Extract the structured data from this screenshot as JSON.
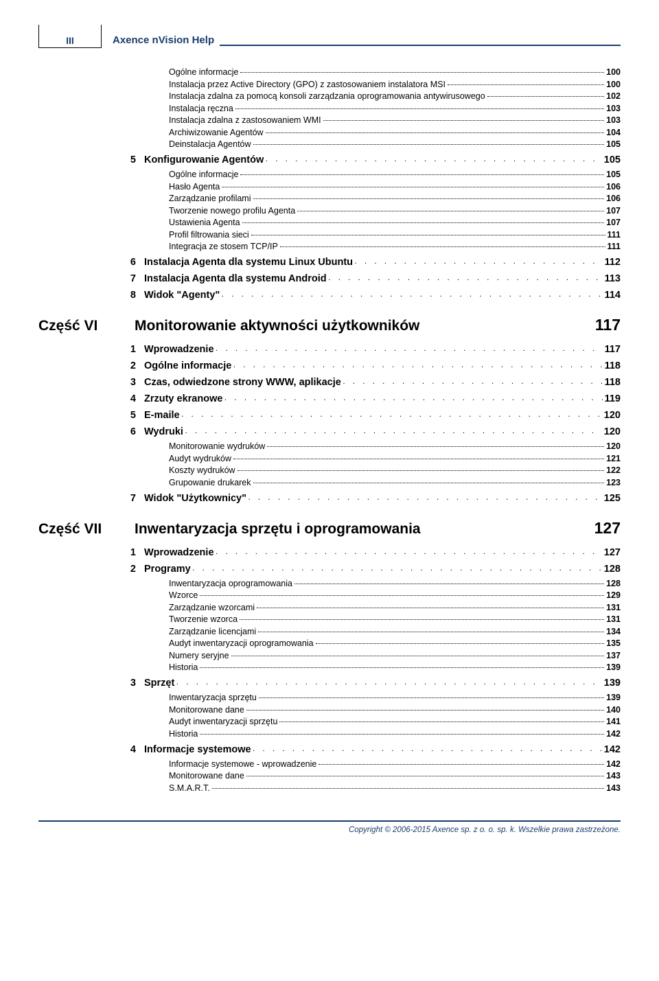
{
  "header": {
    "roman": "III",
    "title": "Axence nVision Help"
  },
  "colors": {
    "brand": "#1a3c6e",
    "text": "#000000",
    "bg": "#ffffff"
  },
  "footer": "Copyright © 2006-2015 Axence sp. z o. o. sp. k. Wszelkie prawa zastrzeżone.",
  "toc": [
    {
      "lvl": 3,
      "label": "Ogólne informacje",
      "page": "100"
    },
    {
      "lvl": 3,
      "label": "Instalacja przez Active Directory (GPO) z zastosowaniem instalatora MSI",
      "page": "100"
    },
    {
      "lvl": 3,
      "label": "Instalacja zdalna za pomocą konsoli zarządzania oprogramowania antywirusowego",
      "page": "102"
    },
    {
      "lvl": 3,
      "label": "Instalacja ręczna",
      "page": "103"
    },
    {
      "lvl": 3,
      "label": "Instalacja zdalna z zastosowaniem WMI",
      "page": "103"
    },
    {
      "lvl": 3,
      "label": "Archiwizowanie Agentów",
      "page": "104"
    },
    {
      "lvl": 3,
      "label": "Deinstalacja Agentów",
      "page": "105"
    },
    {
      "lvl": 2,
      "num": "5",
      "label": "Konfigurowanie Agentów",
      "page": "105"
    },
    {
      "lvl": 3,
      "label": "Ogólne informacje",
      "page": "105"
    },
    {
      "lvl": 3,
      "label": "Hasło Agenta",
      "page": "106"
    },
    {
      "lvl": 3,
      "label": "Zarządzanie profilami",
      "page": "106"
    },
    {
      "lvl": 3,
      "label": "Tworzenie nowego profilu Agenta",
      "page": "107"
    },
    {
      "lvl": 3,
      "label": "Ustawienia Agenta",
      "page": "107"
    },
    {
      "lvl": 3,
      "label": "Profil filtrowania sieci",
      "page": "111"
    },
    {
      "lvl": 3,
      "label": "Integracja ze stosem TCP/IP",
      "page": "111"
    },
    {
      "lvl": 2,
      "num": "6",
      "label": "Instalacja Agenta dla systemu Linux Ubuntu",
      "page": "112"
    },
    {
      "lvl": 2,
      "num": "7",
      "label": "Instalacja Agenta dla systemu Android",
      "page": "113"
    },
    {
      "lvl": 2,
      "num": "8",
      "label": "Widok \"Agenty\"",
      "page": "114"
    },
    {
      "lvl": 1,
      "part": "Część VI",
      "label": "Monitorowanie aktywności użytkowników",
      "page": "117"
    },
    {
      "lvl": 2,
      "num": "1",
      "label": "Wprowadzenie",
      "page": "117"
    },
    {
      "lvl": 2,
      "num": "2",
      "label": "Ogólne informacje",
      "page": "118"
    },
    {
      "lvl": 2,
      "num": "3",
      "label": "Czas, odwiedzone strony WWW, aplikacje",
      "page": "118"
    },
    {
      "lvl": 2,
      "num": "4",
      "label": "Zrzuty ekranowe",
      "page": "119"
    },
    {
      "lvl": 2,
      "num": "5",
      "label": "E-maile",
      "page": "120"
    },
    {
      "lvl": 2,
      "num": "6",
      "label": "Wydruki",
      "page": "120"
    },
    {
      "lvl": 3,
      "label": "Monitorowanie wydruków",
      "page": "120"
    },
    {
      "lvl": 3,
      "label": "Audyt wydruków",
      "page": "121"
    },
    {
      "lvl": 3,
      "label": "Koszty wydruków",
      "page": "122"
    },
    {
      "lvl": 3,
      "label": "Grupowanie drukarek",
      "page": "123"
    },
    {
      "lvl": 2,
      "num": "7",
      "label": "Widok \"Użytkownicy\"",
      "page": "125"
    },
    {
      "lvl": 1,
      "part": "Część VII",
      "label": "Inwentaryzacja sprzętu i oprogramowania",
      "page": "127"
    },
    {
      "lvl": 2,
      "num": "1",
      "label": "Wprowadzenie",
      "page": "127"
    },
    {
      "lvl": 2,
      "num": "2",
      "label": "Programy",
      "page": "128"
    },
    {
      "lvl": 3,
      "label": "Inwentaryzacja oprogramowania",
      "page": "128"
    },
    {
      "lvl": 3,
      "label": "Wzorce",
      "page": "129"
    },
    {
      "lvl": 3,
      "label": "Zarządzanie wzorcami",
      "page": "131"
    },
    {
      "lvl": 3,
      "label": "Tworzenie wzorca",
      "page": "131"
    },
    {
      "lvl": 3,
      "label": "Zarządzanie licencjami",
      "page": "134"
    },
    {
      "lvl": 3,
      "label": "Audyt inwentaryzacji oprogramowania",
      "page": "135"
    },
    {
      "lvl": 3,
      "label": "Numery seryjne",
      "page": "137"
    },
    {
      "lvl": 3,
      "label": "Historia",
      "page": "139"
    },
    {
      "lvl": 2,
      "num": "3",
      "label": "Sprzęt",
      "page": "139"
    },
    {
      "lvl": 3,
      "label": "Inwentaryzacja sprzętu",
      "page": "139"
    },
    {
      "lvl": 3,
      "label": "Monitorowane dane",
      "page": "140"
    },
    {
      "lvl": 3,
      "label": "Audyt inwentaryzacji sprzętu",
      "page": "141"
    },
    {
      "lvl": 3,
      "label": "Historia",
      "page": "142"
    },
    {
      "lvl": 2,
      "num": "4",
      "label": "Informacje systemowe",
      "page": "142"
    },
    {
      "lvl": 3,
      "label": "Informacje systemowe - wprowadzenie",
      "page": "142"
    },
    {
      "lvl": 3,
      "label": "Monitorowane dane",
      "page": "143"
    },
    {
      "lvl": 3,
      "label": "S.M.A.R.T.",
      "page": "143"
    }
  ]
}
